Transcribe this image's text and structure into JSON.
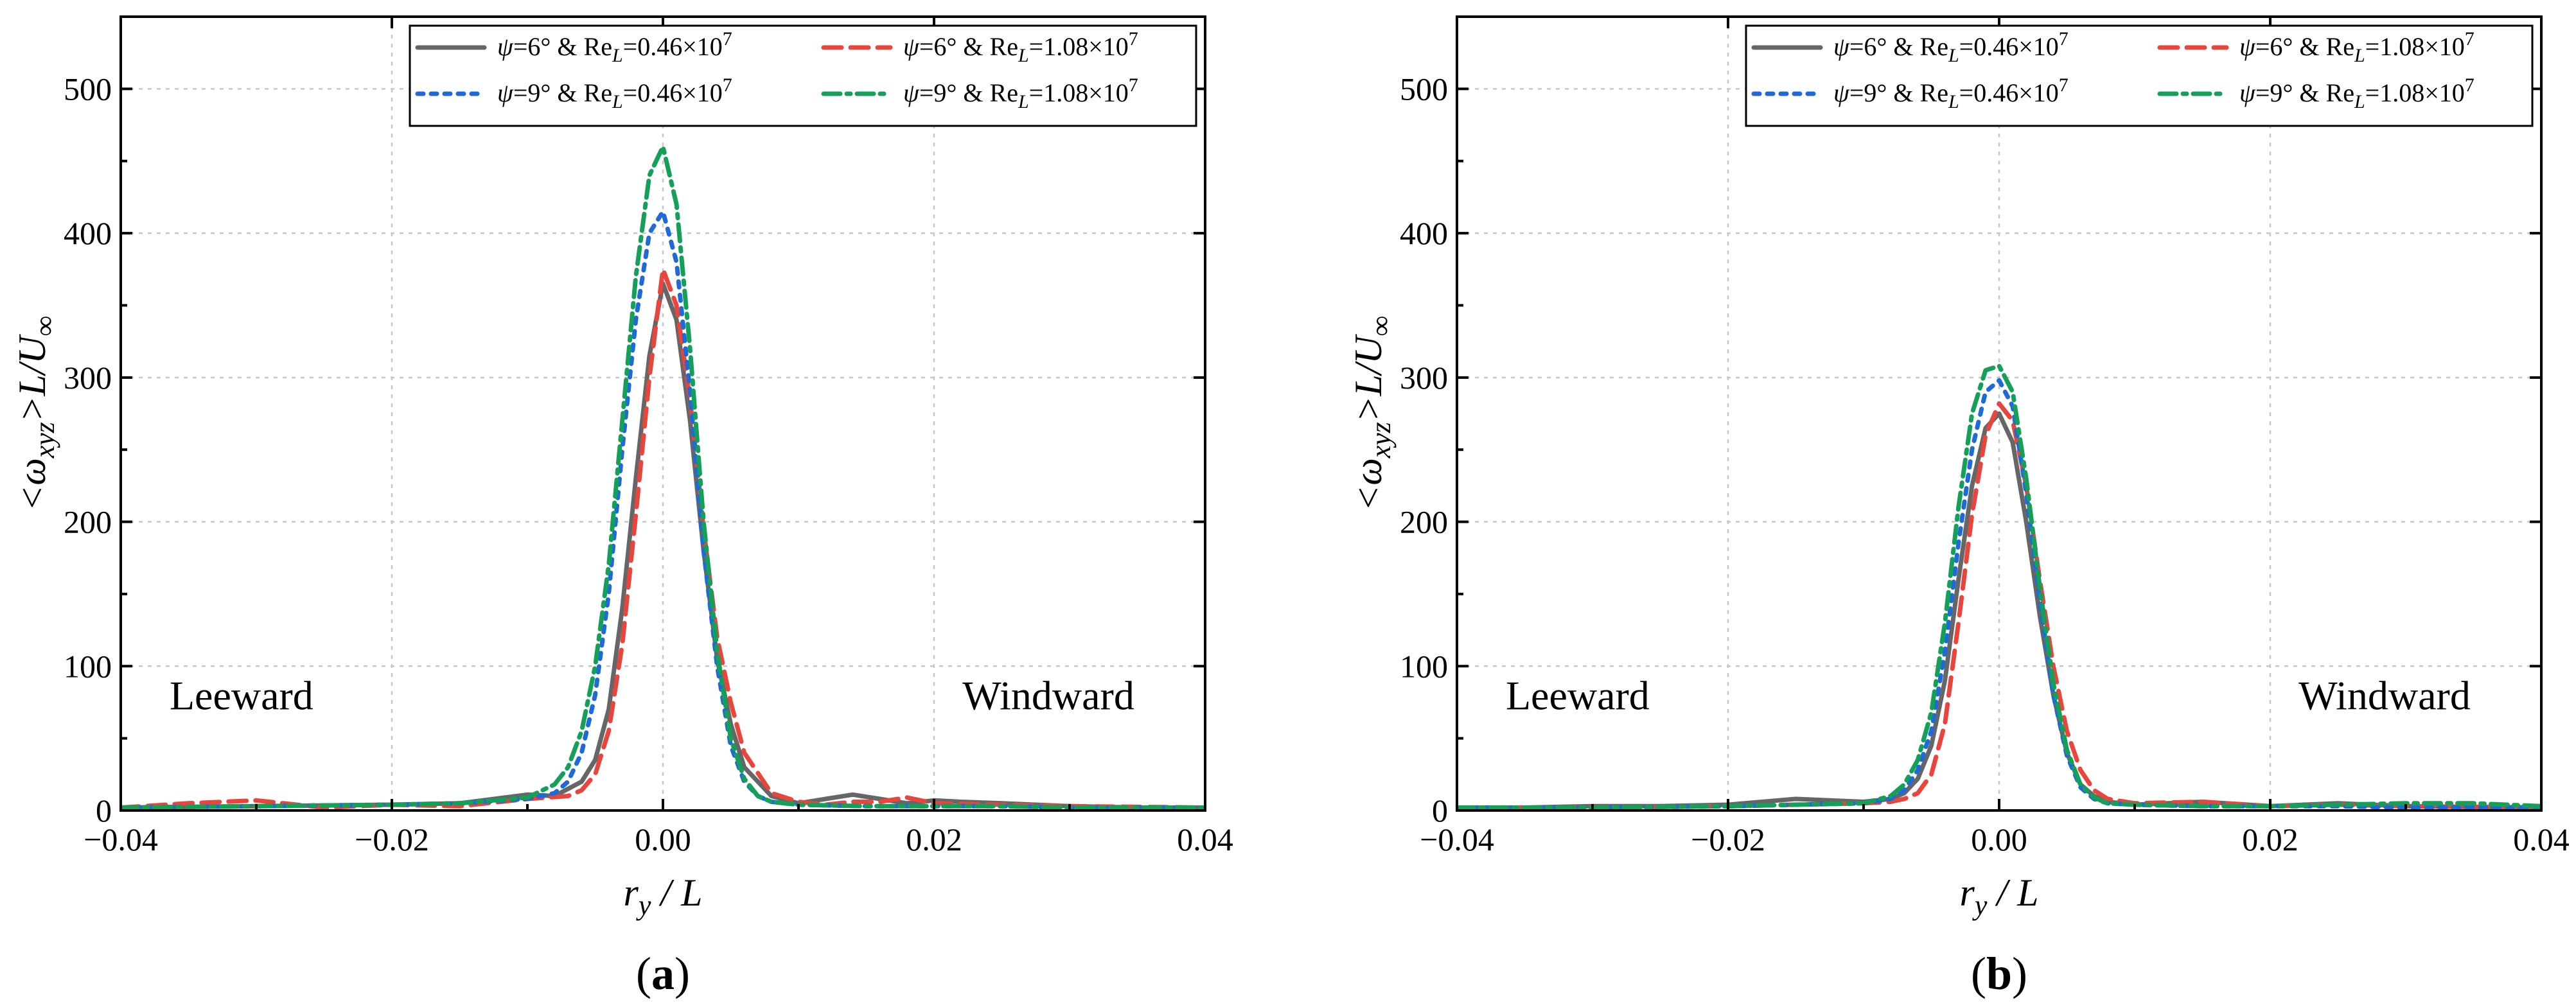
{
  "colors": {
    "psi6_re046": "#666666",
    "psi6_re108": "#e8453c",
    "psi9_re046": "#1f6ad6",
    "psi9_re108": "#15a05a"
  },
  "chart_data": [
    {
      "type": "line",
      "panel": "(a)",
      "panel_letter": "a",
      "xlabel": "r_y / L",
      "ylabel": "<ω_xyz>L/U_∞",
      "xlim": [
        -0.04,
        0.04
      ],
      "ylim": [
        0,
        550
      ],
      "xticks": [
        -0.04,
        -0.02,
        0.0,
        0.02,
        0.04
      ],
      "xtick_labels": [
        "−0.04",
        "−0.02",
        "0.00",
        "0.02",
        "0.04"
      ],
      "yticks": [
        0,
        100,
        200,
        300,
        400,
        500
      ],
      "ytick_labels": [
        "0",
        "100",
        "200",
        "300",
        "400",
        "500"
      ],
      "grid": true,
      "legend_position": "top-right",
      "annotations": [
        {
          "text": "Leeward",
          "x": -0.0364,
          "y": 70
        },
        {
          "text": "Windward",
          "x": 0.0221,
          "y": 70
        }
      ],
      "series": [
        {
          "name": "ψ=6° & Re_L=0.46×10^7",
          "psi": "6°",
          "re_mant": "0.46",
          "re_exp": "7",
          "style": "solid",
          "color_key": "psi6_re046",
          "x": [
            -0.04,
            -0.03,
            -0.02,
            -0.015,
            -0.01,
            -0.008,
            -0.006,
            -0.005,
            -0.004,
            -0.003,
            -0.002,
            -0.001,
            0.0,
            0.001,
            0.002,
            0.003,
            0.004,
            0.005,
            0.006,
            0.008,
            0.01,
            0.012,
            0.014,
            0.016,
            0.018,
            0.02,
            0.022,
            0.025,
            0.03,
            0.035,
            0.04
          ],
          "y": [
            2,
            3,
            4,
            5,
            11,
            10,
            20,
            35,
            70,
            140,
            230,
            315,
            365,
            340,
            270,
            180,
            105,
            60,
            30,
            10,
            5,
            8,
            11,
            8,
            5,
            7,
            6,
            5,
            3,
            2,
            2
          ]
        },
        {
          "name": "ψ=6° & Re_L=1.08×10^7",
          "psi": "6°",
          "re_mant": "1.08",
          "re_exp": "7",
          "style": "dashed",
          "color_key": "psi6_re108",
          "x": [
            -0.04,
            -0.035,
            -0.03,
            -0.025,
            -0.02,
            -0.015,
            -0.01,
            -0.007,
            -0.006,
            -0.005,
            -0.004,
            -0.003,
            -0.002,
            -0.001,
            0.0,
            0.001,
            0.002,
            0.003,
            0.004,
            0.005,
            0.006,
            0.008,
            0.01,
            0.012,
            0.014,
            0.016,
            0.018,
            0.02,
            0.025,
            0.03,
            0.04
          ],
          "y": [
            2,
            5,
            7,
            2,
            4,
            3,
            8,
            10,
            14,
            25,
            55,
            115,
            205,
            300,
            375,
            350,
            285,
            195,
            120,
            75,
            40,
            12,
            6,
            4,
            6,
            6,
            9,
            5,
            4,
            3,
            2
          ]
        },
        {
          "name": "ψ=9° & Re_L=0.46×10^7",
          "psi": "9°",
          "re_mant": "0.46",
          "re_exp": "7",
          "style": "dotted",
          "color_key": "psi9_re046",
          "x": [
            -0.04,
            -0.03,
            -0.02,
            -0.015,
            -0.01,
            -0.008,
            -0.007,
            -0.006,
            -0.005,
            -0.004,
            -0.003,
            -0.002,
            -0.001,
            0.0,
            0.001,
            0.002,
            0.003,
            0.004,
            0.005,
            0.006,
            0.007,
            0.008,
            0.01,
            0.015,
            0.02,
            0.025,
            0.03,
            0.04
          ],
          "y": [
            2,
            3,
            4,
            5,
            8,
            12,
            20,
            40,
            80,
            150,
            250,
            340,
            400,
            415,
            380,
            290,
            180,
            100,
            45,
            20,
            10,
            6,
            4,
            3,
            3,
            3,
            2,
            2
          ]
        },
        {
          "name": "ψ=9° & Re_L=1.08×10^7",
          "psi": "9°",
          "re_mant": "1.08",
          "re_exp": "7",
          "style": "dashdot",
          "color_key": "psi9_re108",
          "x": [
            -0.04,
            -0.03,
            -0.02,
            -0.015,
            -0.01,
            -0.008,
            -0.007,
            -0.006,
            -0.005,
            -0.004,
            -0.003,
            -0.002,
            -0.001,
            0.0,
            0.001,
            0.002,
            0.003,
            0.004,
            0.005,
            0.006,
            0.007,
            0.008,
            0.01,
            0.015,
            0.02,
            0.025,
            0.03,
            0.04
          ],
          "y": [
            2,
            3,
            4,
            5,
            9,
            18,
            30,
            55,
            100,
            170,
            270,
            370,
            440,
            460,
            420,
            320,
            200,
            110,
            50,
            22,
            10,
            6,
            4,
            3,
            3,
            3,
            2,
            2
          ]
        }
      ]
    },
    {
      "type": "line",
      "panel": "(b)",
      "panel_letter": "b",
      "xlabel": "r_y / L",
      "ylabel": "<ω_xyz>L/U_∞",
      "xlim": [
        -0.04,
        0.04
      ],
      "ylim": [
        0,
        550
      ],
      "xticks": [
        -0.04,
        -0.02,
        0.0,
        0.02,
        0.04
      ],
      "xtick_labels": [
        "−0.04",
        "−0.02",
        "0.00",
        "0.02",
        "0.04"
      ],
      "yticks": [
        0,
        100,
        200,
        300,
        400,
        500
      ],
      "ytick_labels": [
        "0",
        "100",
        "200",
        "300",
        "400",
        "500"
      ],
      "grid": true,
      "legend_position": "top-right",
      "annotations": [
        {
          "text": "Leeward",
          "x": -0.0364,
          "y": 70
        },
        {
          "text": "Windward",
          "x": 0.0221,
          "y": 70
        }
      ],
      "series": [
        {
          "name": "ψ=6° & Re_L=0.46×10^7",
          "psi": "6°",
          "re_mant": "0.46",
          "re_exp": "7",
          "style": "solid",
          "color_key": "psi6_re046",
          "x": [
            -0.04,
            -0.035,
            -0.03,
            -0.025,
            -0.02,
            -0.015,
            -0.01,
            -0.008,
            -0.007,
            -0.006,
            -0.005,
            -0.004,
            -0.003,
            -0.002,
            -0.001,
            0.0,
            0.001,
            0.002,
            0.003,
            0.004,
            0.005,
            0.006,
            0.007,
            0.008,
            0.01,
            0.015,
            0.02,
            0.025,
            0.03,
            0.04
          ],
          "y": [
            2,
            2,
            3,
            3,
            4,
            8,
            6,
            8,
            12,
            22,
            45,
            90,
            160,
            225,
            265,
            275,
            255,
            200,
            135,
            80,
            40,
            18,
            10,
            6,
            4,
            6,
            3,
            5,
            3,
            2
          ]
        },
        {
          "name": "ψ=6° & Re_L=1.08×10^7",
          "psi": "6°",
          "re_mant": "1.08",
          "re_exp": "7",
          "style": "dashed",
          "color_key": "psi6_re108",
          "x": [
            -0.04,
            -0.03,
            -0.02,
            -0.015,
            -0.01,
            -0.008,
            -0.007,
            -0.006,
            -0.005,
            -0.004,
            -0.003,
            -0.002,
            -0.001,
            0.0,
            0.001,
            0.002,
            0.003,
            0.004,
            0.005,
            0.006,
            0.007,
            0.008,
            0.01,
            0.015,
            0.02,
            0.025,
            0.03,
            0.04
          ],
          "y": [
            2,
            2,
            3,
            4,
            5,
            6,
            8,
            12,
            25,
            60,
            130,
            205,
            260,
            282,
            270,
            225,
            160,
            100,
            55,
            28,
            14,
            8,
            5,
            6,
            3,
            4,
            3,
            2
          ]
        },
        {
          "name": "ψ=9° & Re_L=0.46×10^7",
          "psi": "9°",
          "re_mant": "0.46",
          "re_exp": "7",
          "style": "dotted",
          "color_key": "psi9_re046",
          "x": [
            -0.04,
            -0.03,
            -0.02,
            -0.015,
            -0.01,
            -0.008,
            -0.007,
            -0.006,
            -0.005,
            -0.004,
            -0.003,
            -0.002,
            -0.001,
            0.0,
            0.001,
            0.002,
            0.003,
            0.004,
            0.005,
            0.006,
            0.007,
            0.008,
            0.01,
            0.015,
            0.02,
            0.025,
            0.03,
            0.04
          ],
          "y": [
            2,
            2,
            3,
            4,
            5,
            8,
            14,
            28,
            55,
            110,
            185,
            250,
            290,
            298,
            280,
            220,
            145,
            80,
            38,
            16,
            8,
            5,
            4,
            3,
            3,
            3,
            2,
            2
          ]
        },
        {
          "name": "ψ=9° & Re_L=1.08×10^7",
          "psi": "9°",
          "re_mant": "1.08",
          "re_exp": "7",
          "style": "dashdot",
          "color_key": "psi9_re108",
          "x": [
            -0.04,
            -0.03,
            -0.02,
            -0.015,
            -0.01,
            -0.008,
            -0.007,
            -0.006,
            -0.005,
            -0.004,
            -0.003,
            -0.002,
            -0.001,
            0.0,
            0.001,
            0.002,
            0.003,
            0.004,
            0.005,
            0.006,
            0.007,
            0.008,
            0.01,
            0.015,
            0.02,
            0.025,
            0.03,
            0.035,
            0.04
          ],
          "y": [
            2,
            2,
            3,
            4,
            5,
            10,
            18,
            35,
            68,
            130,
            210,
            275,
            305,
            308,
            290,
            230,
            155,
            88,
            42,
            18,
            9,
            5,
            4,
            3,
            3,
            4,
            5,
            5,
            3
          ]
        }
      ]
    }
  ]
}
